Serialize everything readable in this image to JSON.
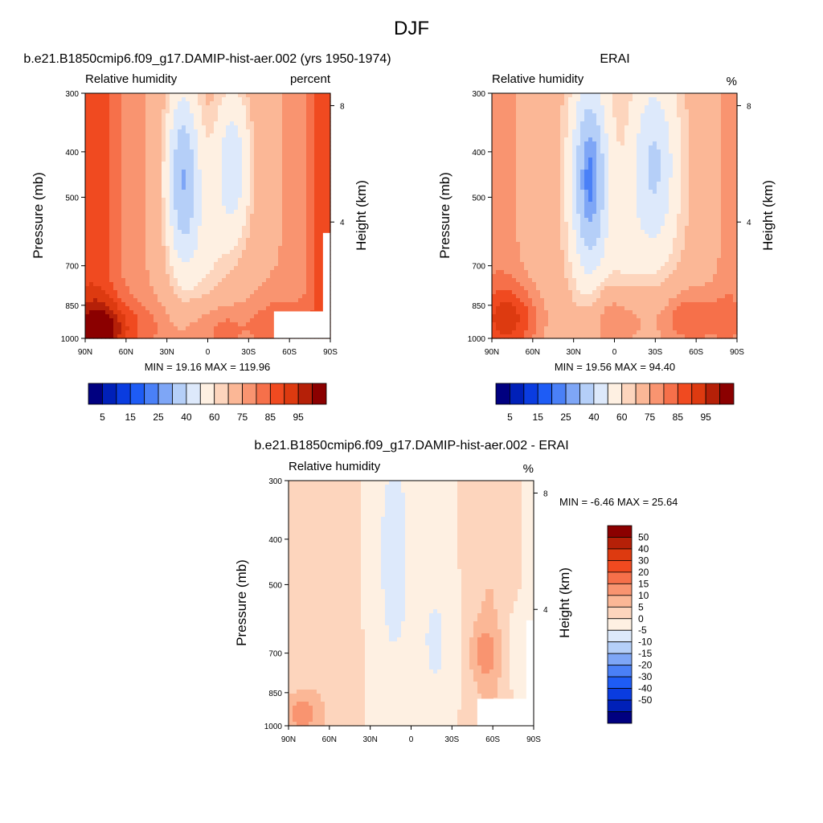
{
  "figure": {
    "title": "DJF"
  },
  "colors": {
    "abs_scale": [
      "#000080",
      "#0020b8",
      "#0a3ce0",
      "#1e5cf5",
      "#4a80f7",
      "#7ea6f6",
      "#b5cff8",
      "#dde9fb",
      "#fef0e2",
      "#fdd5bd",
      "#fbb796",
      "#f99470",
      "#f6704a",
      "#f04a20",
      "#dd3a10",
      "#b52008",
      "#8b0000"
    ],
    "diff_scale": [
      "#000080",
      "#0020b8",
      "#0a3ce0",
      "#1e5cf5",
      "#4a80f7",
      "#7ea6f6",
      "#b5cff8",
      "#dde9fb",
      "#fef0e2",
      "#fdd5bd",
      "#fbb796",
      "#f99470",
      "#f6704a",
      "#f04a20",
      "#dd3a10",
      "#b52008",
      "#8b0000"
    ]
  },
  "chart_data": [
    {
      "type": "heatmap",
      "title": "b.e21.B1850cmip6.f09_g17.DAMIP-hist-aer.002 (yrs 1950-1974)",
      "subtitle_left": "Relative humidity",
      "subtitle_right": "percent",
      "xlabel": "",
      "ylabel": "Pressure (mb)",
      "ylabel_right": "Height (km)",
      "x_ticks": [
        "90N",
        "60N",
        "30N",
        "0",
        "30S",
        "60S",
        "90S"
      ],
      "y_ticks": [
        "300",
        "400",
        "500",
        "700",
        "850",
        "1000"
      ],
      "y_right_ticks": [
        "8",
        "4"
      ],
      "stats": "MIN =  19.16  MAX = 119.96",
      "colorbar_labels": [
        "5",
        "15",
        "25",
        "40",
        "60",
        "75",
        "85",
        "95"
      ]
    },
    {
      "type": "heatmap",
      "title": "ERAI",
      "subtitle_left": "Relative humidity",
      "subtitle_right": "%",
      "xlabel": "",
      "ylabel": "Pressure (mb)",
      "ylabel_right": "Height (km)",
      "x_ticks": [
        "90N",
        "60N",
        "30N",
        "0",
        "30S",
        "60S",
        "90S"
      ],
      "y_ticks": [
        "300",
        "400",
        "500",
        "700",
        "850",
        "1000"
      ],
      "y_right_ticks": [
        "8",
        "4"
      ],
      "stats": "MIN =  19.56  MAX =  94.40",
      "colorbar_labels": [
        "5",
        "15",
        "25",
        "40",
        "60",
        "75",
        "85",
        "95"
      ]
    },
    {
      "type": "heatmap",
      "title": "b.e21.B1850cmip6.f09_g17.DAMIP-hist-aer.002 - ERAI",
      "subtitle_left": "Relative humidity",
      "subtitle_right": "%",
      "xlabel": "",
      "ylabel": "Pressure (mb)",
      "ylabel_right": "Height (km)",
      "x_ticks": [
        "90N",
        "60N",
        "30N",
        "0",
        "30S",
        "60S",
        "90S"
      ],
      "y_ticks": [
        "300",
        "400",
        "500",
        "700",
        "850",
        "1000"
      ],
      "y_right_ticks": [
        "8",
        "4"
      ],
      "stats": "MIN =  -6.46  MAX =  25.64",
      "colorbar_labels": [
        "50",
        "40",
        "30",
        "20",
        "15",
        "10",
        "5",
        "0",
        "-5",
        "-10",
        "-15",
        "-20",
        "-30",
        "-40",
        "-50"
      ]
    }
  ]
}
